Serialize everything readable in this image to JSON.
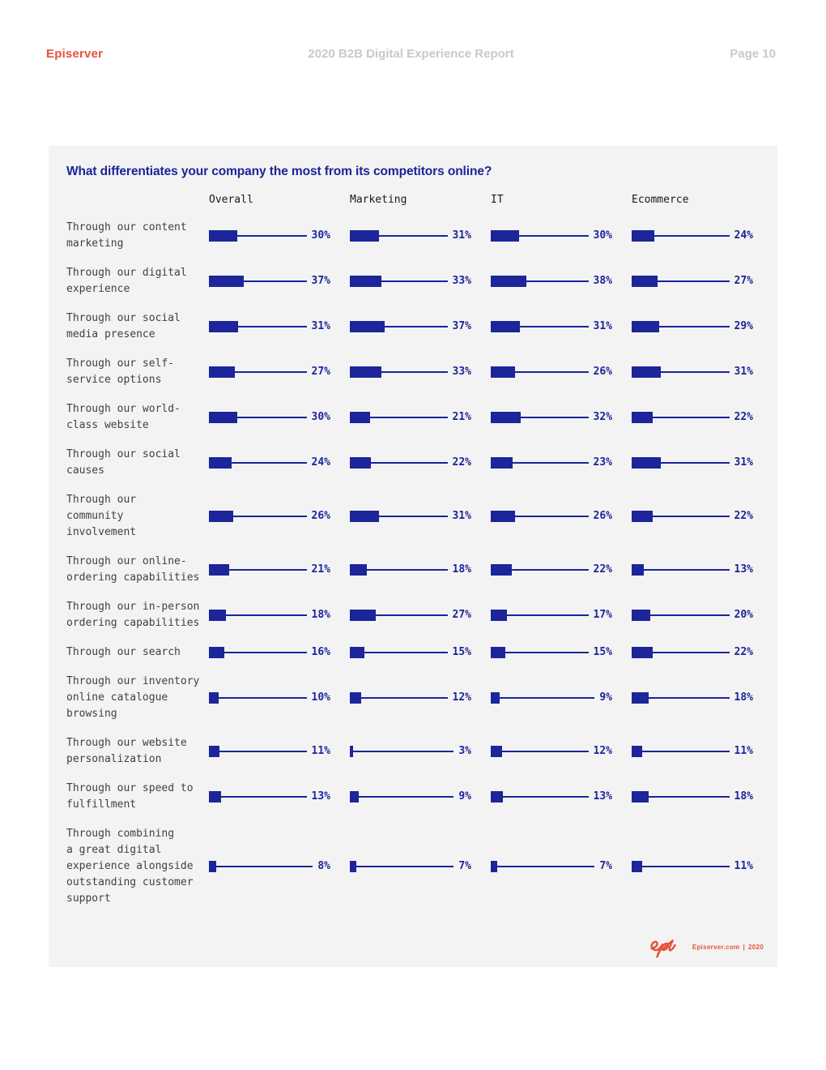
{
  "header": {
    "brand": "Episerver",
    "title": "2020 B2B Digital Experience Report",
    "page": "Page 10"
  },
  "chart_data": {
    "type": "bar",
    "title": "What differentiates your company the most from its competitors online?",
    "value_suffix": "%",
    "legend_position": "column headers across top",
    "grid": false,
    "xlim": [
      0,
      100
    ],
    "categories": [
      "Through our content\nmarketing",
      "Through our digital\nexperience",
      "Through our social\nmedia presence",
      "Through our self-\nservice options",
      "Through our world-\nclass website",
      "Through our social\ncauses",
      "Through our\ncommunity\ninvolvement",
      "Through our online-\nordering capabilities",
      "Through our in-person\nordering capabilities",
      "Through our search",
      "Through our inventory\nonline catalogue\nbrowsing",
      "Through our website\npersonalization",
      "Through our speed to\nfulfillment",
      "Through combining\na great digital\nexperience alongside\noutstanding customer\nsupport"
    ],
    "series": [
      {
        "name": "Overall",
        "values": [
          30,
          37,
          31,
          27,
          30,
          24,
          26,
          21,
          18,
          16,
          10,
          11,
          13,
          8
        ]
      },
      {
        "name": "Marketing",
        "values": [
          31,
          33,
          37,
          33,
          21,
          22,
          31,
          18,
          27,
          15,
          12,
          3,
          9,
          7
        ]
      },
      {
        "name": "IT",
        "values": [
          30,
          38,
          31,
          26,
          32,
          23,
          26,
          22,
          17,
          15,
          9,
          12,
          13,
          7
        ]
      },
      {
        "name": "Ecommerce",
        "values": [
          24,
          27,
          29,
          31,
          22,
          31,
          22,
          13,
          20,
          22,
          18,
          11,
          18,
          11
        ]
      }
    ]
  },
  "colors": {
    "bar_navy": "#1c2599",
    "title_navy": "#1b2496",
    "brand_red": "#e4533e",
    "panel_bg": "#f3f3f3",
    "muted_gray": "#c9c9c9",
    "row_label_gray": "#414141"
  },
  "footer": {
    "logo": "epi-script-logo",
    "site": "Episerver.com",
    "separator": "|",
    "year": "2020"
  }
}
